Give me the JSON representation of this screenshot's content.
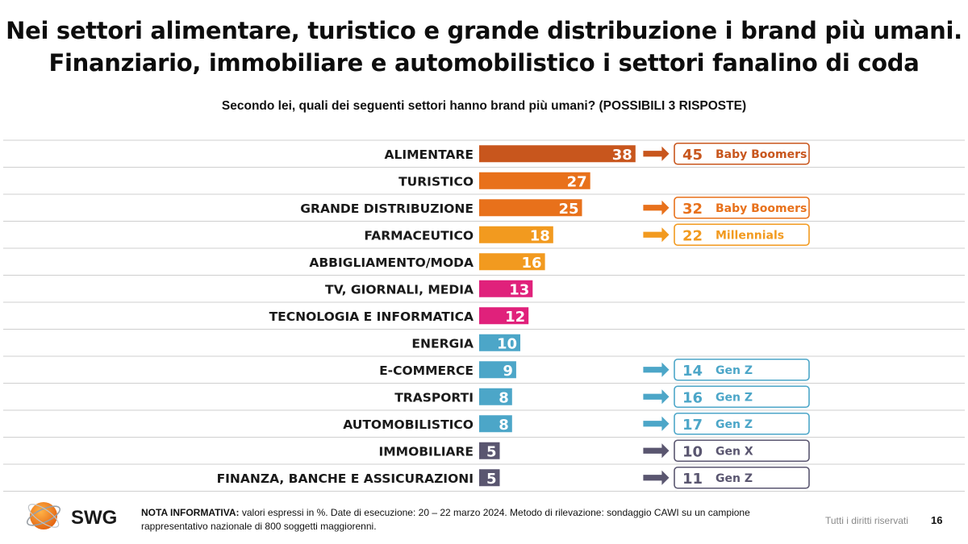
{
  "title_line1": "Nei settori alimentare, turistico e grande distribuzione i brand più umani.",
  "title_line2": "Finanziario, immobiliare e automobilistico i settori fanalino di coda",
  "question": "Secondo lei, quali dei seguenti settori hanno brand più umani? (POSSIBILI 3 RISPOSTE)",
  "colors": {
    "orange_dark": "#c8561d",
    "orange": "#e8711b",
    "orange_light": "#f29a1f",
    "pink": "#e0217b",
    "blue": "#4ca6c8",
    "slate": "#5a5670"
  },
  "chart_data": {
    "type": "bar",
    "orientation": "horizontal",
    "categories": [
      "ALIMENTARE",
      "TURISTICO",
      "GRANDE DISTRIBUZIONE",
      "FARMACEUTICO",
      "ABBIGLIAMENTO/MODA",
      "TV, GIORNALI, MEDIA",
      "TECNOLOGIA E INFORMATICA",
      "ENERGIA",
      "E-COMMERCE",
      "TRASPORTI",
      "AUTOMOBILISTICO",
      "IMMOBILIARE",
      "FINANZA, BANCHE E ASSICURAZIONI"
    ],
    "values": [
      38,
      27,
      25,
      18,
      16,
      13,
      12,
      10,
      9,
      8,
      8,
      5,
      5
    ],
    "bar_colors": [
      "#c8561d",
      "#e8711b",
      "#e8711b",
      "#f29a1f",
      "#f29a1f",
      "#e0217b",
      "#e0217b",
      "#4ca6c8",
      "#4ca6c8",
      "#4ca6c8",
      "#4ca6c8",
      "#5a5670",
      "#5a5670"
    ],
    "xlim": [
      0,
      45
    ],
    "callouts": [
      {
        "row": 0,
        "value": "45",
        "group": "Baby Boomers",
        "color": "#c8561d"
      },
      {
        "row": 2,
        "value": "32",
        "group": "Baby Boomers",
        "color": "#e8711b"
      },
      {
        "row": 3,
        "value": "22",
        "group": "Millennials",
        "color": "#f29a1f"
      },
      {
        "row": 8,
        "value": "14",
        "group": "Gen Z",
        "color": "#4ca6c8"
      },
      {
        "row": 9,
        "value": "16",
        "group": "Gen Z",
        "color": "#4ca6c8"
      },
      {
        "row": 10,
        "value": "17",
        "group": "Gen Z",
        "color": "#4ca6c8"
      },
      {
        "row": 11,
        "value": "10",
        "group": "Gen X",
        "color": "#5a5670"
      },
      {
        "row": 12,
        "value": "11",
        "group": "Gen Z",
        "color": "#5a5670"
      }
    ]
  },
  "footer": {
    "logo_text": "SWG",
    "note_label": "NOTA INFORMATIVA:",
    "note_text": " valori espressi in %. Date di esecuzione: 20 – 22 marzo 2024. Metodo di rilevazione: sondaggio CAWI su un campione rappresentativo nazionale di 800 soggetti maggiorenni.",
    "rights": "Tutti i diritti riservati",
    "page_number": "16"
  }
}
